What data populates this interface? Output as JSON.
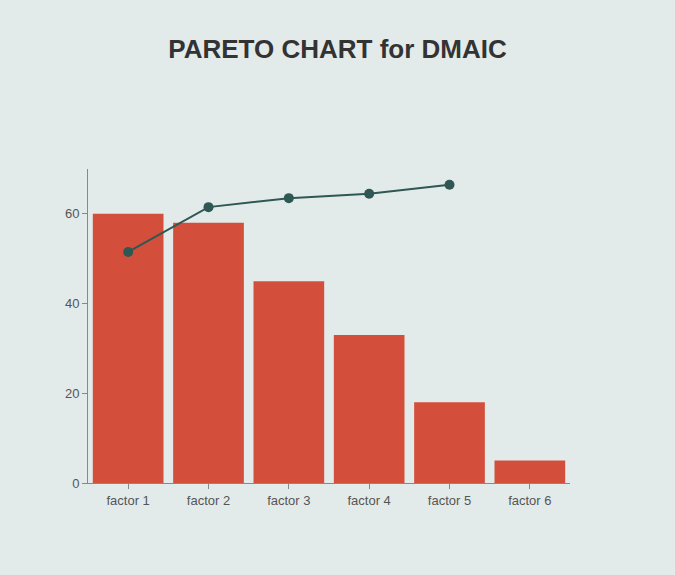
{
  "chart_data": {
    "type": "bar",
    "title": "PARETO CHART for DMAIC",
    "categories": [
      "factor 1",
      "factor 2",
      "factor 3",
      "factor 4",
      "factor 5",
      "factor 6"
    ],
    "series": [
      {
        "type": "bar",
        "color": "#d34f3c",
        "values": [
          60,
          58,
          45,
          33,
          18,
          5
        ]
      },
      {
        "type": "line",
        "color": "#2f5753",
        "marker": "circle",
        "line_style": "solid",
        "values": [
          51.5,
          61.5,
          63.5,
          64.5,
          66.5,
          null
        ]
      }
    ],
    "ylim": [
      0,
      70
    ],
    "yticks": [
      0,
      20,
      40,
      60
    ],
    "grid": false
  }
}
